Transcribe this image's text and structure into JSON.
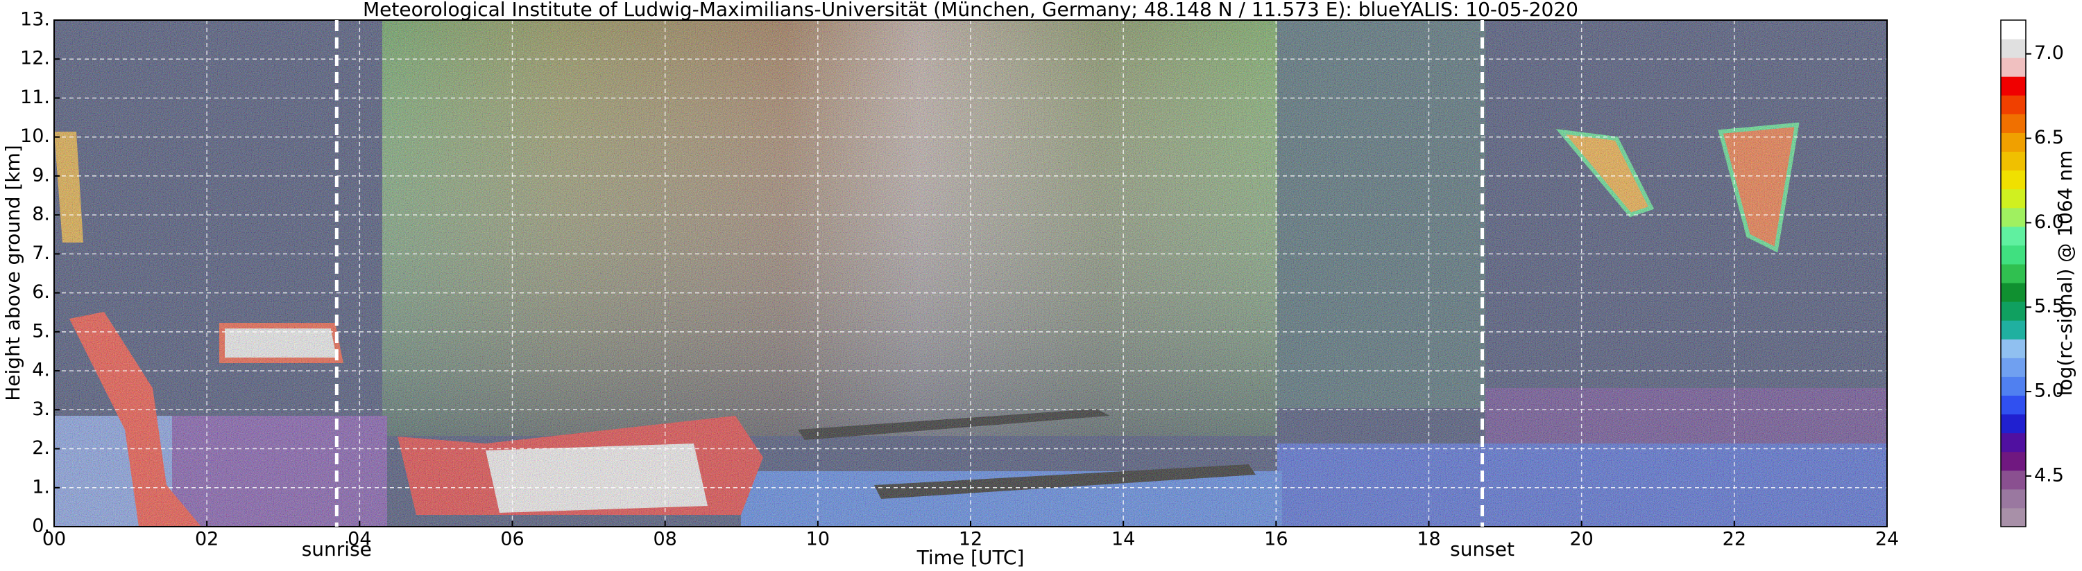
{
  "chart_data": {
    "type": "heatmap",
    "title": "Meteorological Institute of Ludwig-Maximilians-Universität (München, Germany; 48.148 N / 11.573 E):    blueYALIS: 10-05-2020",
    "x_label": "Time [UTC]",
    "y_label": "Height above ground [km]",
    "xlim": [
      0,
      24
    ],
    "xticks": [
      {
        "value": 0,
        "label": "00"
      },
      {
        "value": 2,
        "label": "02"
      },
      {
        "value": 4,
        "label": "04"
      },
      {
        "value": 6,
        "label": "06"
      },
      {
        "value": 8,
        "label": "08"
      },
      10,
      12,
      14,
      16,
      18,
      20,
      22,
      24
    ],
    "ylim": [
      0,
      13
    ],
    "yticks": [
      {
        "value": 0,
        "label": "0."
      },
      {
        "value": 1,
        "label": "1."
      },
      {
        "value": 2,
        "label": "2."
      },
      {
        "value": 3,
        "label": "3."
      },
      {
        "value": 4,
        "label": "4."
      },
      {
        "value": 5,
        "label": "5."
      },
      {
        "value": 6,
        "label": "6."
      },
      {
        "value": 7,
        "label": "7."
      },
      {
        "value": 8,
        "label": "8."
      },
      {
        "value": 9,
        "label": "9."
      },
      {
        "value": 10,
        "label": "10."
      },
      {
        "value": 11,
        "label": "11."
      },
      {
        "value": 12,
        "label": "12."
      },
      {
        "value": 13,
        "label": "13."
      }
    ],
    "grid": true,
    "annotations": [
      {
        "x": 3.7,
        "label": "sunrise"
      },
      {
        "x": 18.7,
        "label": "sunset"
      }
    ],
    "colorbar": {
      "label": "log(rc-signal) @ 1064 nm",
      "lim": [
        4.2,
        7.2
      ],
      "ticks": [
        {
          "value": 4.5,
          "label": "4.5"
        },
        {
          "value": 5.0,
          "label": "5.0"
        },
        5.5,
        {
          "value": 6.0,
          "label": "6.0"
        },
        6.5,
        {
          "value": 7.0,
          "label": "7.0"
        }
      ],
      "colors": [
        "#a890a8",
        "#9a78a0",
        "#8a5090",
        "#701880",
        "#5010a0",
        "#2020d0",
        "#3050f0",
        "#5080f0",
        "#70a0f0",
        "#90c0f0",
        "#20b0a0",
        "#10a060",
        "#109030",
        "#30c050",
        "#40e080",
        "#60f0a0",
        "#a0f060",
        "#d0f020",
        "#f0e000",
        "#f0c000",
        "#f0a000",
        "#f07000",
        "#f04000",
        "#f00000",
        "#f0c0c0",
        "#e0e0e0",
        "#ffffff"
      ]
    }
  }
}
